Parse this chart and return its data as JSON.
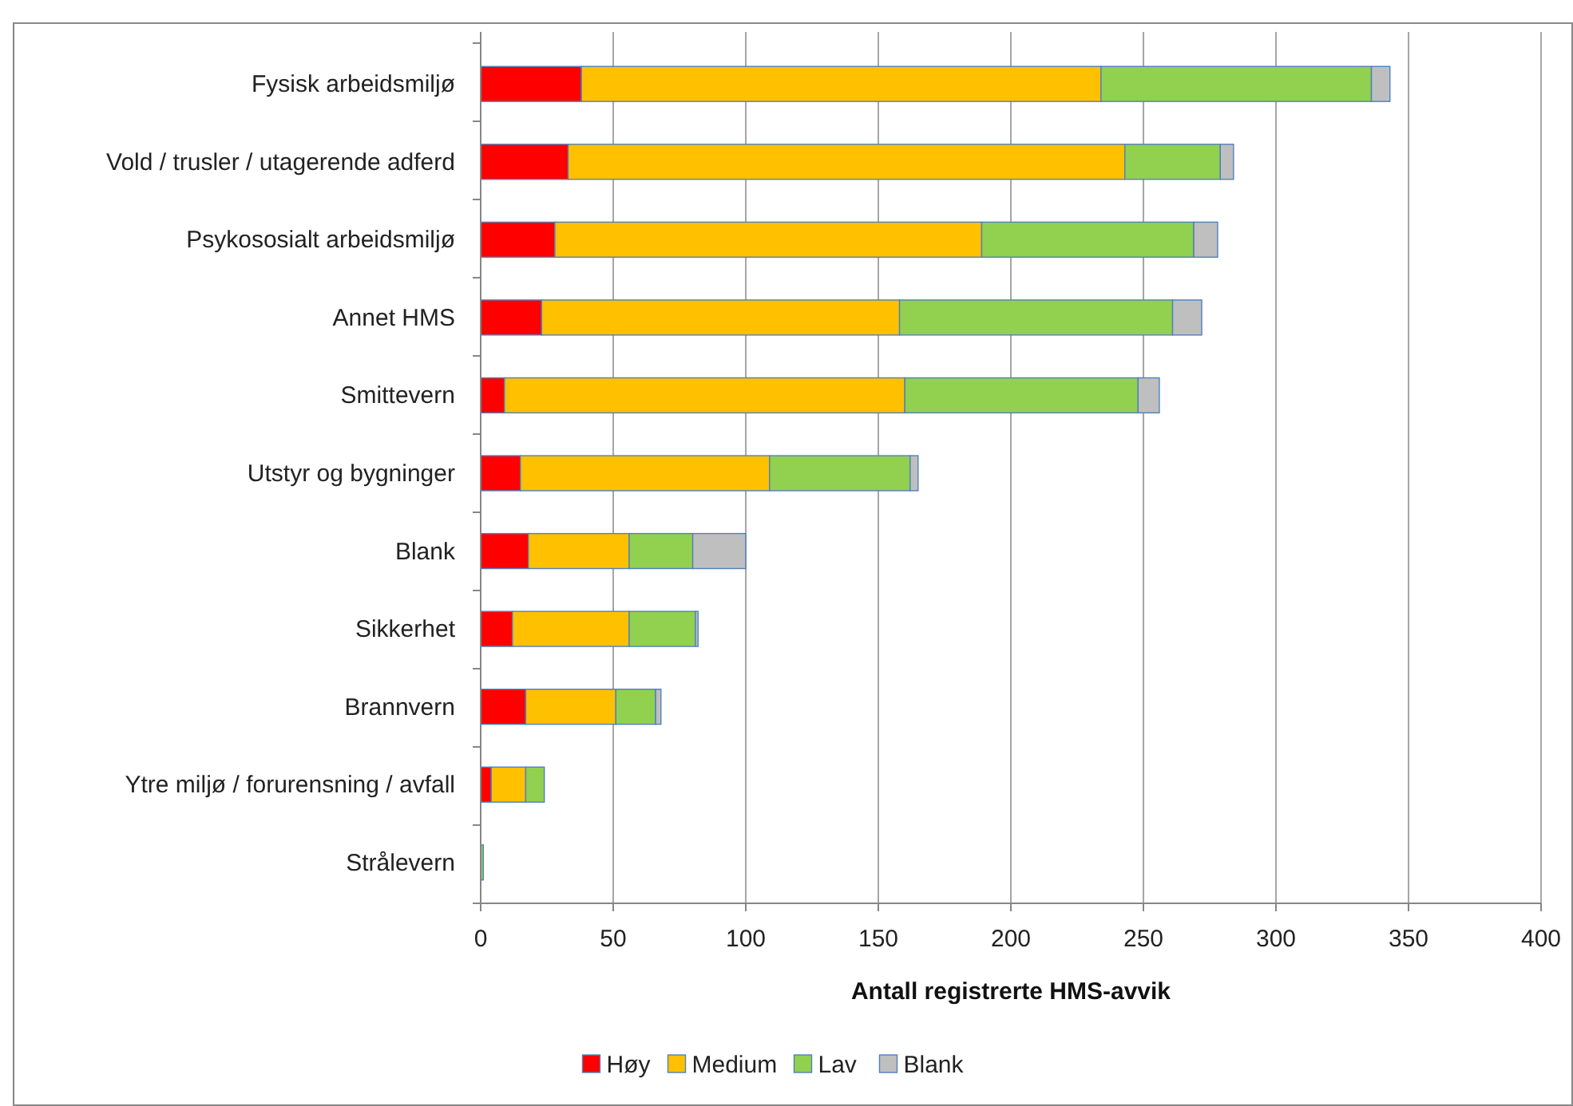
{
  "chart_data": {
    "type": "bar",
    "orientation": "horizontal",
    "stacked": true,
    "xlabel": "Antall registrerte HMS-avvik",
    "categories": [
      "Fysisk arbeidsmiljø",
      "Vold / trusler / utagerende adferd",
      "Psykososialt arbeidsmiljø",
      "Annet HMS",
      "Smittevern",
      "Utstyr og bygninger",
      "Blank",
      "Sikkerhet",
      "Brannvern",
      "Ytre miljø / forurensning / avfall",
      "Strålevern"
    ],
    "series": [
      {
        "name": "Høy",
        "color": "#ff0000",
        "values": [
          38,
          33,
          28,
          23,
          9,
          15,
          18,
          12,
          17,
          4,
          0
        ]
      },
      {
        "name": "Medium",
        "color": "#ffc000",
        "values": [
          196,
          210,
          161,
          135,
          151,
          94,
          38,
          44,
          34,
          13,
          0
        ]
      },
      {
        "name": "Lav",
        "color": "#92d050",
        "values": [
          102,
          36,
          80,
          103,
          88,
          53,
          24,
          25,
          15,
          7,
          1
        ]
      },
      {
        "name": "Blank",
        "color": "#bfbfbf",
        "values": [
          7,
          5,
          9,
          11,
          8,
          3,
          20,
          1,
          2,
          0,
          0
        ]
      }
    ],
    "xlim": [
      0,
      400
    ],
    "xticks": [
      0,
      50,
      100,
      150,
      200,
      250,
      300,
      350,
      400
    ],
    "grid": "x",
    "legend": "bottom"
  }
}
